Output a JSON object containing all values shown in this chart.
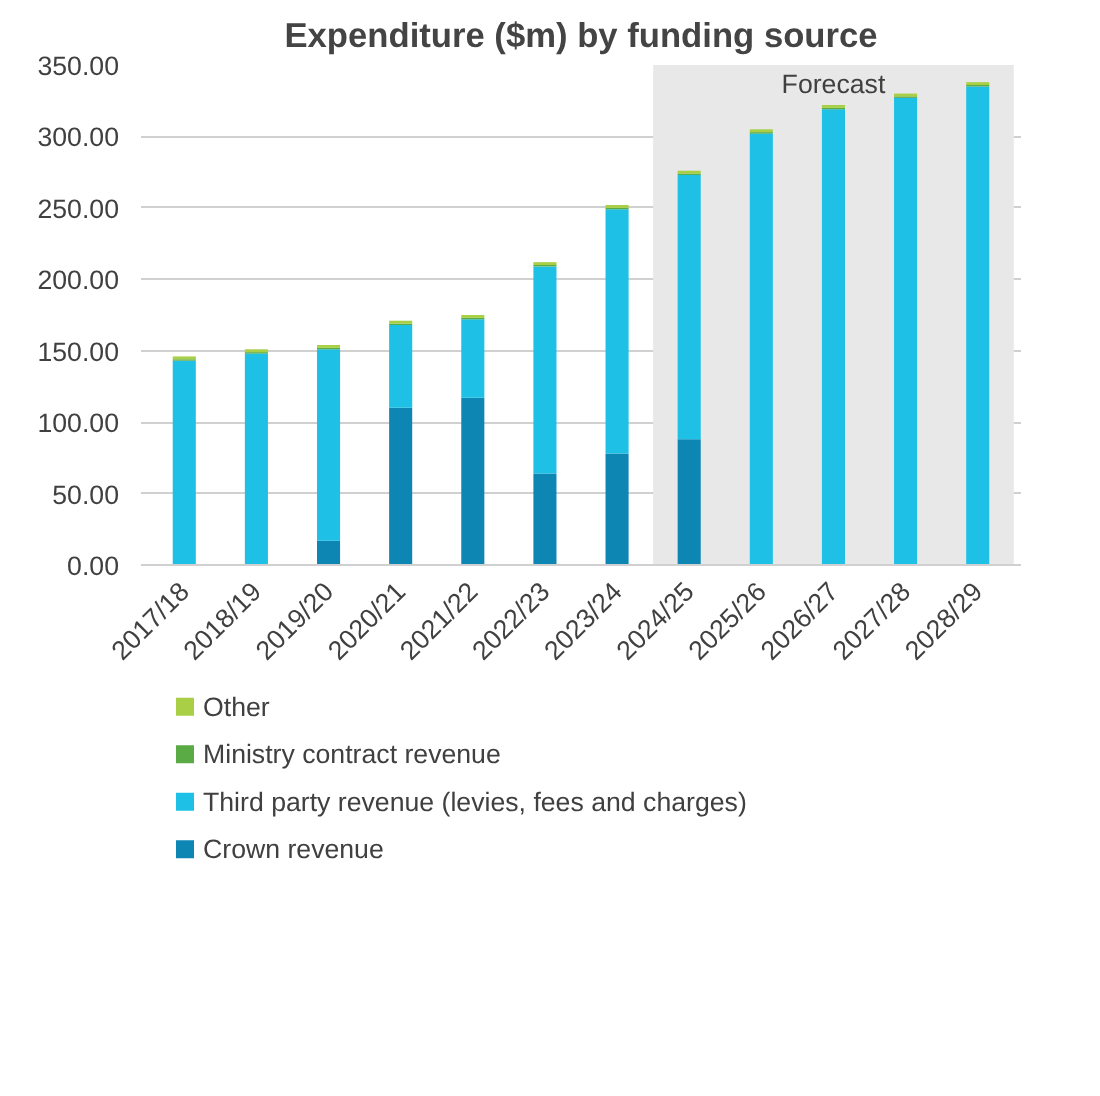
{
  "chart_data": {
    "type": "bar",
    "title": "Expenditure ($m) by funding source",
    "stacked": true,
    "categories": [
      "2017/18",
      "2018/19",
      "2019/20",
      "2020/21",
      "2021/22",
      "2022/23",
      "2023/24",
      "2024/25",
      "2025/26",
      "2026/27",
      "2027/28",
      "2028/29"
    ],
    "series": [
      {
        "name": "Crown revenue",
        "color": "#0e86b4",
        "values": [
          0,
          0,
          17,
          110,
          117,
          64,
          78,
          88,
          0,
          0,
          0,
          0
        ]
      },
      {
        "name": "Third party revenue (levies, fees and charges)",
        "color": "#1ec0e6",
        "values": [
          143,
          148,
          134,
          58,
          55,
          145,
          171,
          185,
          302,
          319,
          327,
          335
        ]
      },
      {
        "name": "Ministry contract revenue",
        "color": "#5aaa46",
        "values": [
          1,
          1,
          1,
          1,
          1,
          1,
          1,
          1,
          1,
          1,
          1,
          1
        ]
      },
      {
        "name": "Other",
        "color": "#a8cf45",
        "values": [
          2,
          2,
          2,
          2,
          2,
          2,
          2,
          2,
          2,
          2,
          2,
          2
        ]
      }
    ],
    "ylim": [
      0,
      350
    ],
    "yticks": [
      {
        "value": 0,
        "label": "0.00"
      },
      {
        "value": 50,
        "label": "50.00"
      },
      {
        "value": 100,
        "label": "100.00"
      },
      {
        "value": 150,
        "label": "150.00"
      },
      {
        "value": 200,
        "label": "200.00"
      },
      {
        "value": 250,
        "label": "250.00"
      },
      {
        "value": 300,
        "label": "300.00"
      },
      {
        "value": 350,
        "label": "350.00"
      }
    ],
    "grid": "y",
    "legend": "bottom",
    "bands": [
      {
        "axis": "x",
        "from": "2024/25",
        "to": "2028/29",
        "label": "Forecast",
        "color": "#e8e8e8"
      }
    ]
  }
}
